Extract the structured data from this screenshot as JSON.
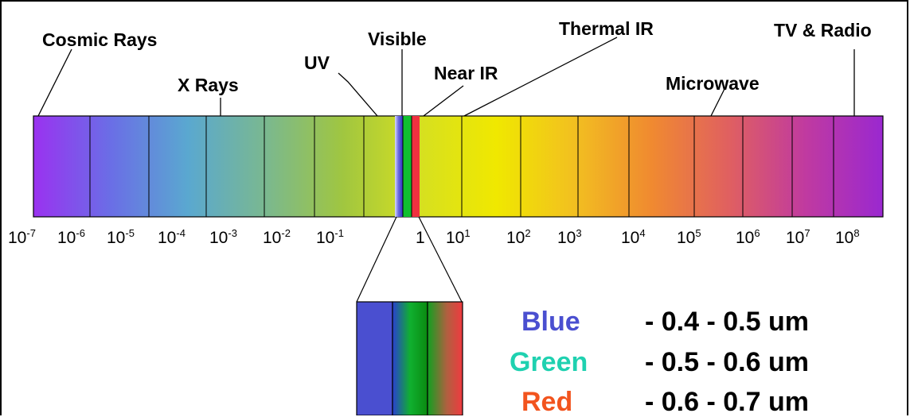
{
  "band_labels": {
    "cosmic_rays": "Cosmic Rays",
    "x_rays": "X Rays",
    "uv": "UV",
    "visible": "Visible",
    "near_ir": "Near IR",
    "thermal_ir": "Thermal IR",
    "microwave": "Microwave",
    "tv_radio": "TV & Radio"
  },
  "ticks": [
    {
      "base": "10",
      "exp": "-7"
    },
    {
      "base": "10",
      "exp": "-6"
    },
    {
      "base": "10",
      "exp": "-5"
    },
    {
      "base": "10",
      "exp": "-4"
    },
    {
      "base": "10",
      "exp": "-3"
    },
    {
      "base": "10",
      "exp": "-2"
    },
    {
      "base": "10",
      "exp": "-1"
    },
    {
      "base": "1",
      "exp": ""
    },
    {
      "base": "10",
      "exp": "1"
    },
    {
      "base": "10",
      "exp": "2"
    },
    {
      "base": "10",
      "exp": "3"
    },
    {
      "base": "10",
      "exp": "4"
    },
    {
      "base": "10",
      "exp": "5"
    },
    {
      "base": "10",
      "exp": "6"
    },
    {
      "base": "10",
      "exp": "7"
    },
    {
      "base": "10",
      "exp": "8"
    }
  ],
  "legend": [
    {
      "name": "Blue",
      "range": "- 0.4 - 0.5 um",
      "color": "#4a4fd0"
    },
    {
      "name": "Green",
      "range": "- 0.5 - 0.6 um",
      "color": "#1fd1b0"
    },
    {
      "name": "Red",
      "range": "- 0.6 - 0.7 um",
      "color": "#f2541e"
    }
  ],
  "colors": {
    "spectrum_gradient": [
      "#9a32f0",
      "#6a6ee6",
      "#5aa8d0",
      "#7ab890",
      "#a0c640",
      "#d6e020",
      "#f0e800",
      "#f2c020",
      "#f08a30",
      "#e06060",
      "#c03aa0",
      "#9a28d0"
    ],
    "visible_blue": "#4a4fd0",
    "visible_green": "#10c030",
    "visible_red": "#f03040"
  }
}
